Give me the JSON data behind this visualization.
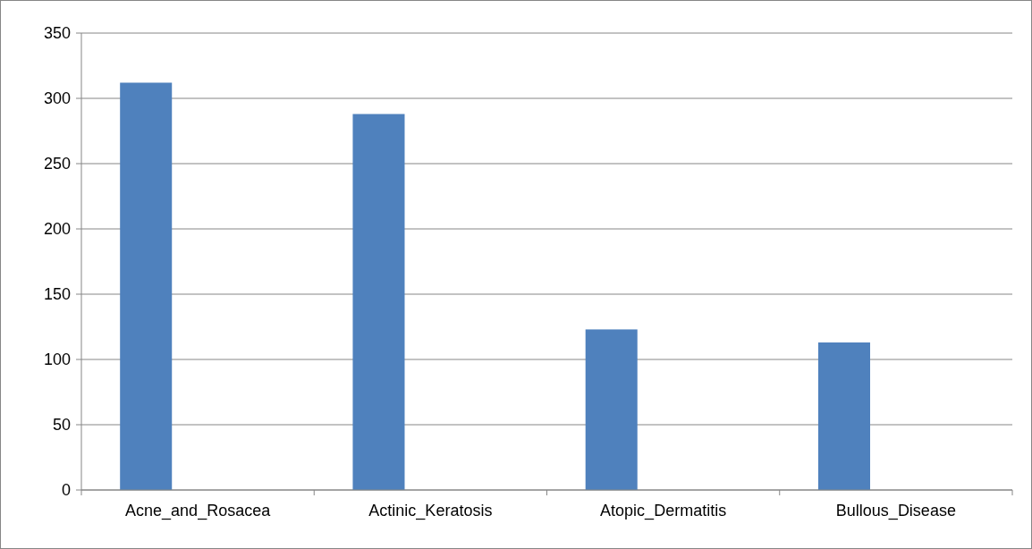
{
  "chart_data": {
    "type": "bar",
    "categories": [
      "Acne_and_Rosacea",
      "Actinic_Keratosis",
      "Atopic_Dermatitis",
      "Bullous_Disease"
    ],
    "values": [
      312,
      288,
      123,
      113
    ],
    "color": "#4f81bd",
    "ylim": [
      0,
      350
    ],
    "yticks": [
      0,
      50,
      100,
      150,
      200,
      250,
      300,
      350
    ],
    "grid": "y"
  }
}
